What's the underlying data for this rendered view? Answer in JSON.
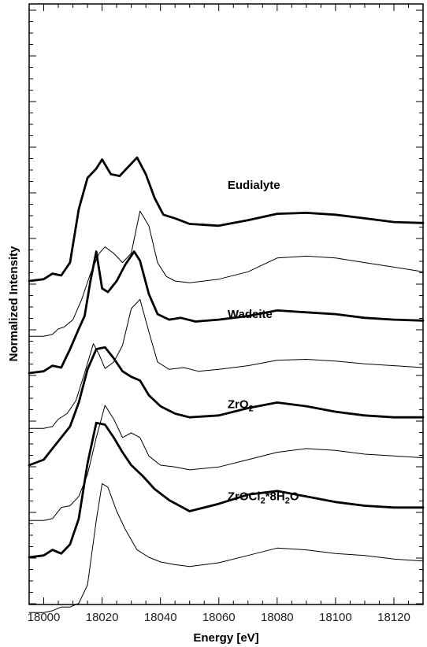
{
  "chart_data": {
    "type": "line",
    "title": "",
    "xlabel": "Energy [eV]",
    "ylabel": "Normalized Intensity",
    "xlim": [
      17995,
      18130
    ],
    "x_ticks": [
      18000,
      18020,
      18040,
      18060,
      18080,
      18100,
      18120
    ],
    "x_tick_labels": [
      "18000",
      "18020",
      "18040",
      "18060",
      "18080",
      "18100",
      "18120"
    ],
    "y_scale": "arbitrary (stacked, offset spectra)",
    "grid": false,
    "groups": [
      {
        "label": "Eudialyte",
        "label_position": [
          18063,
          1.0
        ],
        "offset": 3.0,
        "series": [
          {
            "style": "thick",
            "x": [
              17995,
              18000,
              18003,
              18006,
              18009,
              18012,
              18015,
              18018,
              18020,
              18023,
              18026,
              18029,
              18032,
              18035,
              18038,
              18041,
              18045,
              18050,
              18060,
              18070,
              18080,
              18090,
              18100,
              18110,
              18120,
              18130
            ],
            "y": [
              0.0,
              0.02,
              0.08,
              0.06,
              0.2,
              0.78,
              1.12,
              1.22,
              1.32,
              1.16,
              1.14,
              1.24,
              1.34,
              1.16,
              0.9,
              0.72,
              0.68,
              0.62,
              0.6,
              0.66,
              0.73,
              0.74,
              0.72,
              0.68,
              0.64,
              0.63
            ]
          },
          {
            "style": "thin",
            "x": [
              17995,
              18000,
              18003,
              18005,
              18007,
              18010,
              18013,
              18016,
              18019,
              18021,
              18024,
              18027,
              18030,
              18033,
              18036,
              18039,
              18042,
              18045,
              18050,
              18060,
              18070,
              18080,
              18090,
              18100,
              18110,
              18120,
              18130
            ],
            "y": [
              -0.6,
              -0.6,
              -0.58,
              -0.52,
              -0.5,
              -0.42,
              -0.2,
              0.08,
              0.3,
              0.37,
              0.3,
              0.2,
              0.3,
              0.76,
              0.6,
              0.2,
              0.05,
              0.0,
              -0.02,
              0.02,
              0.1,
              0.25,
              0.27,
              0.25,
              0.2,
              0.15,
              0.1
            ]
          }
        ]
      },
      {
        "label": "Wadeite",
        "label_position": [
          18063,
          0.6
        ],
        "offset": 2.0,
        "series": [
          {
            "style": "thick",
            "x": [
              17995,
              18000,
              18003,
              18006,
              18009,
              18012,
              18014,
              18016,
              18018,
              18020,
              18022,
              18025,
              18028,
              18031,
              18033,
              18036,
              18039,
              18043,
              18047,
              18052,
              18060,
              18070,
              18080,
              18090,
              18100,
              18110,
              18120,
              18130
            ],
            "y": [
              0.0,
              0.02,
              0.08,
              0.06,
              0.26,
              0.48,
              0.62,
              1.0,
              1.32,
              0.92,
              0.88,
              1.0,
              1.18,
              1.32,
              1.22,
              0.86,
              0.64,
              0.58,
              0.6,
              0.56,
              0.58,
              0.62,
              0.68,
              0.66,
              0.64,
              0.6,
              0.58,
              0.57
            ]
          },
          {
            "style": "thin",
            "x": [
              17995,
              18000,
              18003,
              18005,
              18008,
              18011,
              18014,
              18017,
              18019,
              18021,
              18024,
              18027,
              18030,
              18033,
              18036,
              18039,
              18043,
              18048,
              18053,
              18060,
              18070,
              18080,
              18090,
              18100,
              18110,
              18120,
              18130
            ],
            "y": [
              -0.6,
              -0.6,
              -0.58,
              -0.5,
              -0.44,
              -0.3,
              0.0,
              0.32,
              0.2,
              0.05,
              0.12,
              0.3,
              0.7,
              0.8,
              0.45,
              0.12,
              0.04,
              0.06,
              0.02,
              0.04,
              0.08,
              0.14,
              0.15,
              0.13,
              0.1,
              0.08,
              0.06
            ]
          }
        ]
      },
      {
        "label": "ZrO2",
        "label_position": [
          18063,
          0.62
        ],
        "offset": 1.0,
        "series": [
          {
            "style": "thick",
            "x": [
              17995,
              18000,
              18003,
              18006,
              18009,
              18012,
              18015,
              18018,
              18021,
              18024,
              18027,
              18030,
              18033,
              18036,
              18040,
              18045,
              18050,
              18060,
              18070,
              18080,
              18090,
              18100,
              18110,
              18120,
              18130
            ],
            "y": [
              0.0,
              0.06,
              0.18,
              0.3,
              0.42,
              0.68,
              1.04,
              1.26,
              1.28,
              1.16,
              1.02,
              0.96,
              0.92,
              0.76,
              0.64,
              0.56,
              0.52,
              0.54,
              0.62,
              0.68,
              0.64,
              0.58,
              0.54,
              0.52,
              0.52
            ]
          },
          {
            "style": "thin",
            "x": [
              17995,
              18000,
              18003,
              18006,
              18009,
              18012,
              18015,
              18018,
              18021,
              18024,
              18027,
              18030,
              18033,
              18036,
              18040,
              18045,
              18050,
              18060,
              18070,
              18080,
              18090,
              18100,
              18110,
              18120,
              18130
            ],
            "y": [
              -0.6,
              -0.6,
              -0.58,
              -0.46,
              -0.44,
              -0.34,
              -0.1,
              0.3,
              0.65,
              0.5,
              0.3,
              0.35,
              0.3,
              0.1,
              0.0,
              -0.02,
              -0.05,
              -0.02,
              0.06,
              0.14,
              0.18,
              0.16,
              0.12,
              0.1,
              0.08
            ]
          }
        ]
      },
      {
        "label": "ZrOCl2*8H2O",
        "label_position": [
          18063,
          0.62
        ],
        "offset": 0.0,
        "series": [
          {
            "style": "thick",
            "x": [
              17995,
              18000,
              18003,
              18006,
              18009,
              18012,
              18015,
              18018,
              18021,
              18024,
              18027,
              18030,
              18034,
              18038,
              18043,
              18050,
              18060,
              18070,
              18080,
              18090,
              18100,
              18110,
              18120,
              18130
            ],
            "y": [
              0.0,
              0.02,
              0.08,
              0.04,
              0.14,
              0.42,
              1.02,
              1.46,
              1.44,
              1.3,
              1.14,
              1.0,
              0.88,
              0.74,
              0.62,
              0.5,
              0.58,
              0.68,
              0.72,
              0.66,
              0.6,
              0.56,
              0.54,
              0.54
            ]
          },
          {
            "style": "thin",
            "x": [
              17995,
              18000,
              18003,
              18006,
              18009,
              18012,
              18015,
              18018,
              18020,
              18022,
              18025,
              18028,
              18032,
              18036,
              18040,
              18045,
              18050,
              18060,
              18070,
              18080,
              18090,
              18100,
              18110,
              18120,
              18130
            ],
            "y": [
              -0.6,
              -0.6,
              -0.58,
              -0.54,
              -0.54,
              -0.5,
              -0.3,
              0.4,
              0.8,
              0.76,
              0.5,
              0.3,
              0.08,
              0.0,
              -0.05,
              -0.08,
              -0.1,
              -0.06,
              0.02,
              0.1,
              0.08,
              0.04,
              0.02,
              -0.02,
              -0.04
            ]
          }
        ]
      }
    ]
  }
}
